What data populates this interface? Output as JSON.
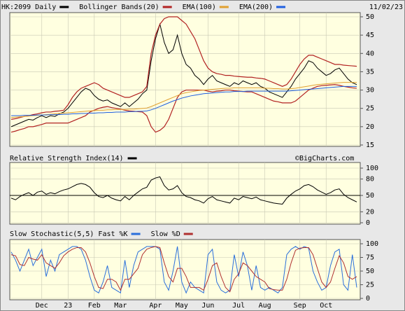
{
  "chart_data": [
    {
      "type": "line",
      "date": "11/02/23",
      "ylim": [
        15,
        50
      ],
      "yticks": [
        15,
        20,
        25,
        30,
        35,
        40,
        45,
        50
      ],
      "grid": true,
      "series": [
        {
          "name": "HK:2099 Daily",
          "color": "#000000",
          "values": [
            20,
            20.5,
            21,
            21.5,
            22,
            21.8,
            22.5,
            23,
            22.5,
            23,
            22.8,
            23.5,
            24,
            25,
            26.5,
            28,
            29.5,
            30.5,
            30,
            28.5,
            27.5,
            27,
            27.3,
            26.5,
            26,
            25.5,
            26.5,
            25.5,
            26.5,
            27.5,
            29,
            30,
            38,
            44,
            48,
            43,
            40,
            41,
            45,
            40,
            37,
            36,
            34,
            33,
            31.5,
            33,
            34,
            32.5,
            32,
            31.5,
            31,
            32,
            31.5,
            32.5,
            32,
            31.5,
            32,
            31,
            30.5,
            29.5,
            29,
            28.5,
            28,
            29.5,
            31,
            33,
            34.5,
            36,
            38,
            37.5,
            36,
            35,
            34,
            34.5,
            35.5,
            36,
            34.5,
            33,
            32,
            31.5
          ]
        },
        {
          "name": "Bollinger Bands(20)",
          "color": "#b22222",
          "upper": [
            22,
            22.2,
            22.5,
            22.8,
            23,
            23.3,
            23.5,
            23.8,
            24,
            24,
            24.2,
            24.3,
            24.5,
            26,
            28,
            29.5,
            30.5,
            31,
            31.5,
            32,
            31.5,
            30.5,
            30,
            29.5,
            29,
            28.5,
            28,
            28,
            28.5,
            29,
            29.5,
            31,
            40,
            45,
            48,
            49.5,
            50,
            50,
            50,
            49,
            48,
            46,
            44,
            41,
            38,
            36,
            35,
            34.5,
            34.3,
            34,
            34,
            33.8,
            33.7,
            33.6,
            33.5,
            33.5,
            33.3,
            33.2,
            33,
            32.5,
            32,
            31.5,
            31,
            31.5,
            33,
            35,
            37,
            38.5,
            39.5,
            39.5,
            39,
            38.5,
            38,
            37.5,
            37,
            37,
            36.8,
            36.7,
            36.6,
            36.5
          ],
          "lower": [
            18.5,
            18.8,
            19.2,
            19.5,
            20,
            20,
            20.3,
            20.6,
            21,
            21,
            21,
            21,
            21,
            21,
            21.5,
            22,
            22.5,
            23,
            24,
            24.5,
            25,
            25.3,
            25.5,
            25.2,
            25,
            24.8,
            24.5,
            24.3,
            24.2,
            24.1,
            24,
            23,
            20,
            18.5,
            19,
            20,
            22,
            25,
            28,
            29.5,
            30,
            30,
            30,
            30,
            30,
            29.7,
            29.5,
            29.7,
            29.8,
            30,
            30,
            29.8,
            29.7,
            29.6,
            29.5,
            29.5,
            29,
            28.5,
            28,
            27.5,
            27,
            26.8,
            26.5,
            26.5,
            26.5,
            27,
            28,
            29,
            30,
            30.5,
            31,
            31.2,
            31.3,
            31.4,
            31.5,
            31.3,
            31,
            30.8,
            30.6,
            30.5
          ]
        },
        {
          "name": "EMA(100)",
          "color": "#e0a030",
          "values": [
            22.5,
            22.6,
            22.7,
            22.8,
            22.9,
            23,
            23.1,
            23.2,
            23.3,
            23.4,
            23.5,
            23.6,
            23.7,
            23.8,
            23.9,
            24,
            24.1,
            24.2,
            24.3,
            24.4,
            24.5,
            24.5,
            24.6,
            24.6,
            24.7,
            24.7,
            24.7,
            24.8,
            24.8,
            24.9,
            25,
            25.1,
            25.5,
            26,
            26.5,
            27,
            27.5,
            28,
            28.5,
            29,
            29.3,
            29.5,
            29.7,
            29.9,
            30,
            30.1,
            30.2,
            30.3,
            30.4,
            30.5,
            30.5,
            30.6,
            30.6,
            30.6,
            30.6,
            30.6,
            30.6,
            30.6,
            30.5,
            30.5,
            30.4,
            30.4,
            30.3,
            30.3,
            30.4,
            30.5,
            30.7,
            30.9,
            31.1,
            31.3,
            31.5,
            31.6,
            31.7,
            31.8,
            31.9,
            32,
            32.1,
            32.1,
            32.1,
            32.1
          ]
        },
        {
          "name": "EMA(200)",
          "color": "#2060e0",
          "values": [
            23,
            23,
            23,
            23.1,
            23.1,
            23.1,
            23.2,
            23.2,
            23.2,
            23.3,
            23.3,
            23.3,
            23.4,
            23.4,
            23.5,
            23.5,
            23.6,
            23.6,
            23.7,
            23.7,
            23.8,
            23.8,
            23.9,
            23.9,
            24,
            24,
            24,
            24.1,
            24.1,
            24.2,
            24.2,
            24.3,
            24.6,
            25,
            25.5,
            26,
            26.5,
            27,
            27.4,
            27.8,
            28.1,
            28.4,
            28.6,
            28.8,
            29,
            29.1,
            29.2,
            29.3,
            29.4,
            29.5,
            29.5,
            29.6,
            29.6,
            29.6,
            29.7,
            29.7,
            29.7,
            29.7,
            29.7,
            29.7,
            29.7,
            29.7,
            29.7,
            29.7,
            29.8,
            29.9,
            30,
            30.1,
            30.2,
            30.3,
            30.4,
            30.5,
            30.6,
            30.7,
            30.8,
            30.9,
            31,
            31,
            31,
            31
          ]
        }
      ]
    },
    {
      "type": "line",
      "title": "Relative Strength Index(14)",
      "source": "©BigCharts.com",
      "ylim": [
        0,
        100
      ],
      "yticks": [
        0,
        20,
        50,
        80,
        100
      ],
      "ref_line": 50,
      "grid": true,
      "series": [
        {
          "color": "#000000",
          "values": [
            45,
            42,
            48,
            52,
            55,
            50,
            56,
            58,
            52,
            55,
            53,
            57,
            60,
            62,
            66,
            70,
            72,
            70,
            65,
            55,
            48,
            46,
            50,
            45,
            42,
            40,
            48,
            42,
            50,
            56,
            62,
            65,
            78,
            82,
            84,
            68,
            60,
            62,
            68,
            55,
            48,
            46,
            42,
            40,
            36,
            44,
            48,
            42,
            40,
            38,
            36,
            45,
            42,
            48,
            46,
            44,
            47,
            42,
            40,
            38,
            36,
            35,
            34,
            45,
            52,
            58,
            62,
            68,
            70,
            66,
            60,
            56,
            52,
            55,
            60,
            62,
            52,
            46,
            42,
            38
          ]
        }
      ]
    },
    {
      "type": "line",
      "title": "Slow Stochastic(5,5)",
      "ylim": [
        0,
        100
      ],
      "yticks": [
        0,
        25,
        50,
        75,
        100
      ],
      "grid": true,
      "categories": [
        null,
        null,
        null,
        null,
        null,
        null,
        null,
        "Dec",
        null,
        null,
        null,
        null,
        null,
        "23",
        null,
        null,
        null,
        null,
        null,
        "Feb",
        null,
        null,
        null,
        null,
        null,
        "Mar",
        null,
        null,
        null,
        null,
        null,
        null,
        null,
        "Apr",
        null,
        null,
        null,
        null,
        null,
        "May",
        null,
        null,
        null,
        null,
        null,
        "Jun",
        null,
        null,
        null,
        null,
        null,
        null,
        "Jul",
        null,
        null,
        null,
        null,
        null,
        "Aug",
        null,
        null,
        null,
        null,
        null,
        null,
        null,
        "Sep",
        null,
        null,
        null,
        null,
        null,
        "Oct",
        null,
        null,
        null,
        null,
        null,
        null,
        null
      ],
      "series": [
        {
          "name": "Fast %K",
          "color": "#2a6fdb",
          "values": [
            85,
            70,
            50,
            70,
            90,
            60,
            75,
            90,
            40,
            70,
            50,
            80,
            85,
            90,
            95,
            95,
            90,
            70,
            40,
            15,
            10,
            30,
            60,
            20,
            15,
            10,
            70,
            20,
            60,
            85,
            90,
            95,
            95,
            95,
            90,
            30,
            15,
            50,
            95,
            30,
            10,
            30,
            20,
            15,
            10,
            80,
            90,
            30,
            15,
            10,
            15,
            80,
            40,
            85,
            60,
            15,
            60,
            20,
            15,
            20,
            15,
            10,
            20,
            80,
            90,
            95,
            90,
            95,
            92,
            50,
            30,
            15,
            20,
            60,
            85,
            90,
            25,
            15,
            80,
            20
          ]
        },
        {
          "name": "Slow %D",
          "color": "#b03030",
          "values": [
            80,
            78,
            62,
            60,
            75,
            72,
            70,
            80,
            65,
            60,
            55,
            65,
            78,
            85,
            90,
            93,
            93,
            85,
            65,
            40,
            20,
            18,
            35,
            35,
            30,
            15,
            35,
            35,
            45,
            55,
            80,
            90,
            93,
            95,
            93,
            65,
            40,
            30,
            55,
            55,
            40,
            20,
            20,
            20,
            15,
            35,
            60,
            65,
            40,
            20,
            12,
            35,
            45,
            65,
            60,
            50,
            40,
            35,
            30,
            18,
            16,
            15,
            15,
            35,
            65,
            88,
            92,
            93,
            93,
            80,
            55,
            30,
            20,
            30,
            55,
            78,
            65,
            40,
            35,
            40
          ]
        }
      ]
    }
  ]
}
